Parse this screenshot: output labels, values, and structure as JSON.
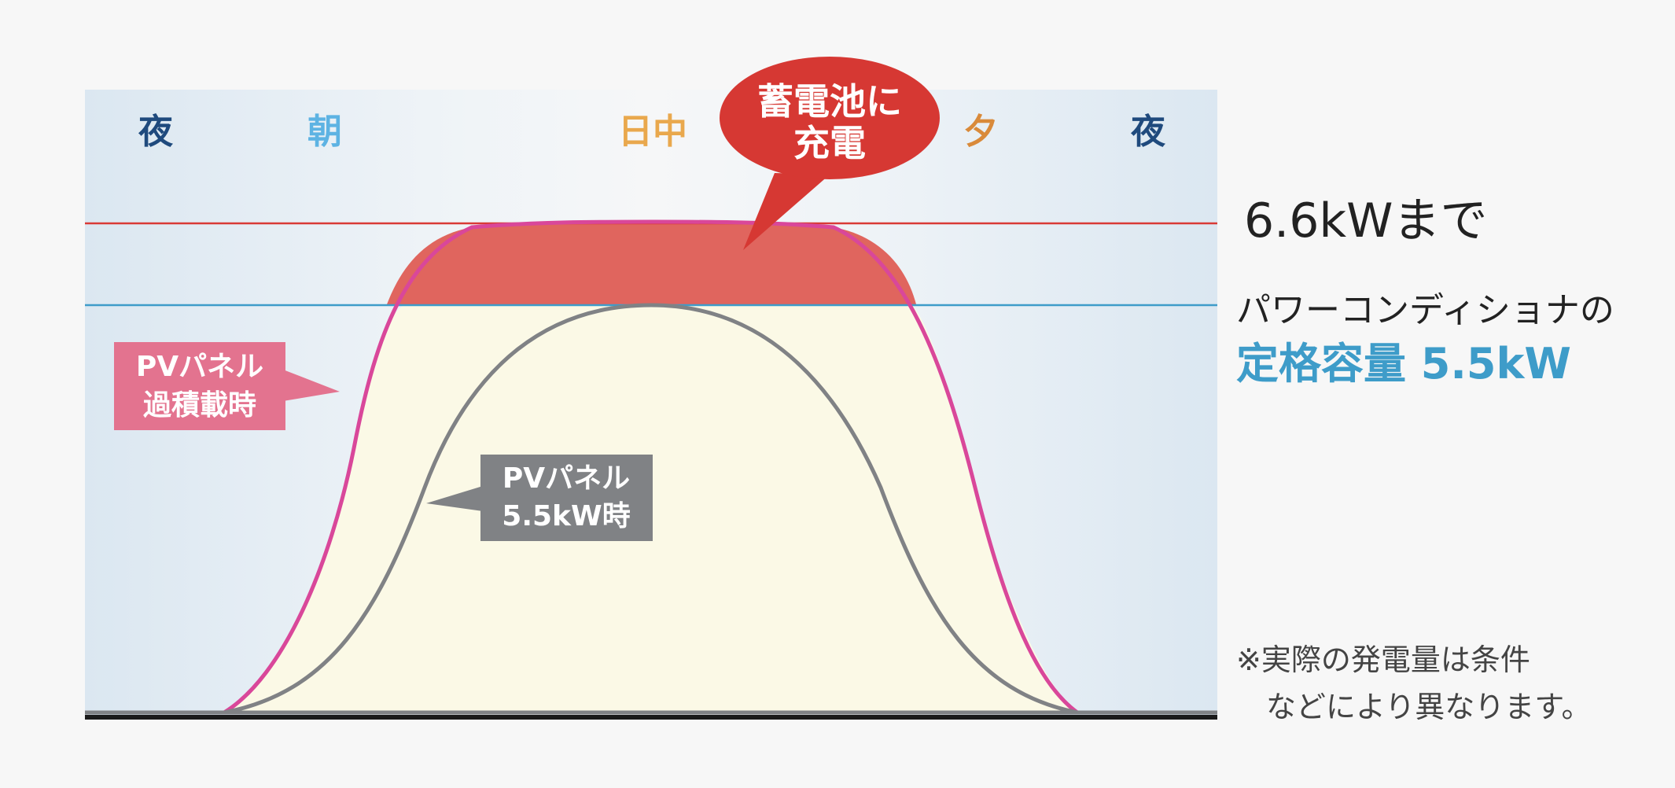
{
  "time_labels": [
    {
      "text": "夜",
      "color": "#1f4a7d"
    },
    {
      "text": "朝",
      "color": "#5db3e3"
    },
    {
      "text": "日中",
      "color": "#e9a84d"
    },
    {
      "text": "夕",
      "color": "#d98a3a"
    },
    {
      "text": "夜",
      "color": "#1f4a7d"
    }
  ],
  "callouts": {
    "battery_charge": [
      "蓄電池に",
      "充電"
    ],
    "pv_overload": [
      "PVパネル",
      "過積載時"
    ],
    "pv_standard": [
      "PVパネル",
      "5.5kW時"
    ]
  },
  "side_labels": {
    "limit": "6.6kWまで",
    "rated_line1": "パワーコンディショナの",
    "rated_line2": "定格容量 5.5kW",
    "note_line1": "※実際の発電量は条件",
    "note_line2": "などにより異なります。"
  },
  "colors": {
    "limit_line": "#d93a36",
    "rated_line": "#3e9cc9",
    "overload_curve": "#d9479a",
    "standard_curve": "#808285",
    "charge_fill": "#e0655e",
    "surplus_fill": "#fbf9e6",
    "battery_bubble": "#d63833",
    "pv_overload_box": "#e3738f",
    "pv_standard_box": "#808285"
  }
}
